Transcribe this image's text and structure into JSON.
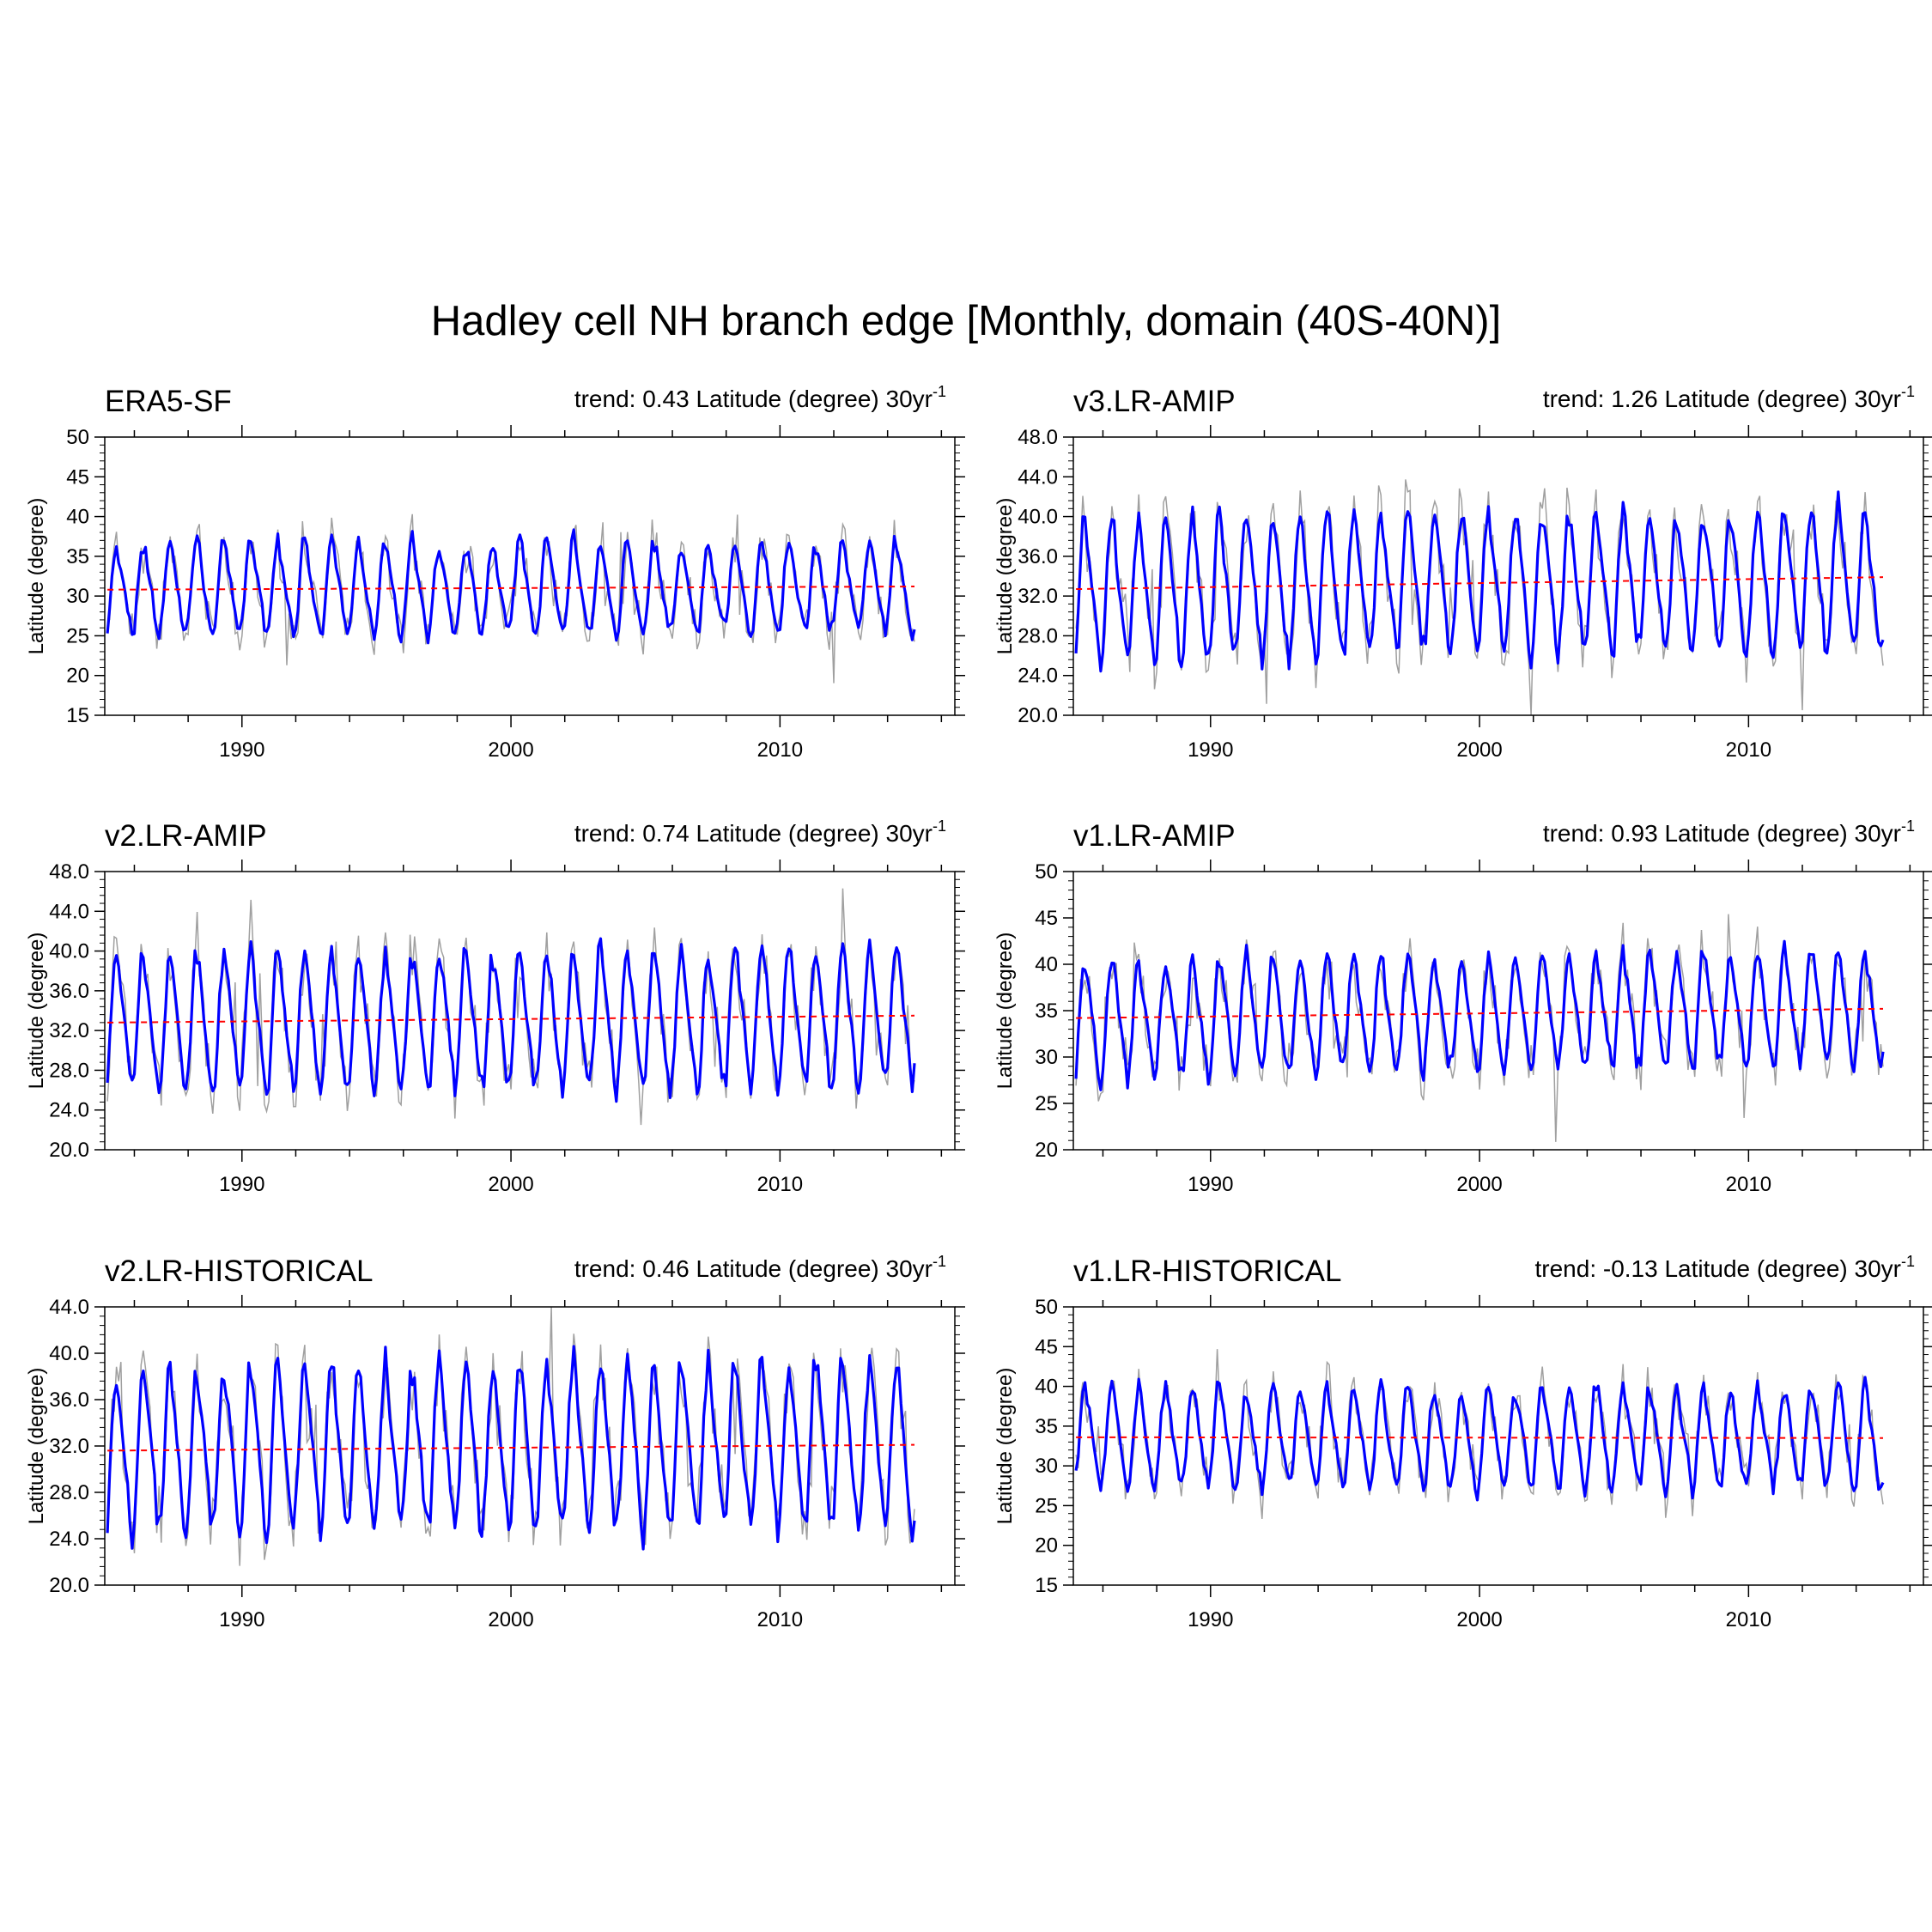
{
  "figure": {
    "title": "Hadley cell NH branch edge [Monthly, domain (40S-40N)]"
  },
  "colors": {
    "smoothed": "#0000ff",
    "raw": "#a0a0a0",
    "trend": "#ff0000",
    "axis": "#000000"
  },
  "chart_data": [
    {
      "type": "line",
      "title": "ERA5-SF",
      "trend_text": "trend: 0.43 Latitude (degree) 30yr",
      "trend_exp": "-1",
      "ylabel": "Latitude (degree)",
      "xlabel": "",
      "xlim": [
        1984.9,
        2016.5
      ],
      "ylim": [
        15,
        50
      ],
      "xticks": [
        1990,
        2000,
        2010
      ],
      "yticks": [
        15,
        20,
        25,
        30,
        35,
        40,
        45,
        50
      ],
      "ytick_labels": [
        "15",
        "20",
        "25",
        "30",
        "35",
        "40",
        "45",
        "50"
      ],
      "time_range": [
        1985,
        2014.99
      ],
      "seasonal_mean": 31.0,
      "seasonal_amplitude": 5.5,
      "trend_line": {
        "x": [
          1985,
          2015
        ],
        "y": [
          30.8,
          31.2
        ]
      },
      "series": [
        {
          "name": "monthly (raw)",
          "style": "thin grey"
        },
        {
          "name": "smoothed",
          "style": "thick blue"
        },
        {
          "name": "linear trend",
          "style": "dashed red"
        }
      ]
    },
    {
      "type": "line",
      "title": "v3.LR-AMIP",
      "trend_text": "trend: 1.26 Latitude (degree) 30yr",
      "trend_exp": "-1",
      "ylabel": "Latitude (degree)",
      "xlabel": "",
      "xlim": [
        1984.9,
        2016.5
      ],
      "ylim": [
        20,
        48
      ],
      "xticks": [
        1990,
        2000,
        2010
      ],
      "yticks": [
        20,
        24,
        28,
        32,
        36,
        40,
        44,
        48
      ],
      "ytick_labels": [
        "20.0",
        "24.0",
        "28.0",
        "32.0",
        "36.0",
        "40.0",
        "44.0",
        "48.0"
      ],
      "time_range": [
        1985,
        2014.99
      ],
      "seasonal_mean": 33.3,
      "seasonal_amplitude": 6.8,
      "trend_line": {
        "x": [
          1985,
          2015
        ],
        "y": [
          32.7,
          33.9
        ]
      },
      "series": [
        {
          "name": "monthly (raw)",
          "style": "thin grey"
        },
        {
          "name": "smoothed",
          "style": "thick blue"
        },
        {
          "name": "linear trend",
          "style": "dashed red"
        }
      ]
    },
    {
      "type": "line",
      "title": "v2.LR-AMIP",
      "trend_text": "trend: 0.74 Latitude (degree) 30yr",
      "trend_exp": "-1",
      "ylabel": "Latitude (degree)",
      "xlabel": "",
      "xlim": [
        1984.9,
        2016.5
      ],
      "ylim": [
        20,
        48
      ],
      "xticks": [
        1990,
        2000,
        2010
      ],
      "yticks": [
        20,
        24,
        28,
        32,
        36,
        40,
        44,
        48
      ],
      "ytick_labels": [
        "20.0",
        "24.0",
        "28.0",
        "32.0",
        "36.0",
        "40.0",
        "44.0",
        "48.0"
      ],
      "time_range": [
        1985,
        2014.99
      ],
      "seasonal_mean": 33.0,
      "seasonal_amplitude": 6.6,
      "trend_line": {
        "x": [
          1985,
          2015
        ],
        "y": [
          32.8,
          33.5
        ]
      },
      "series": [
        {
          "name": "monthly (raw)",
          "style": "thin grey"
        },
        {
          "name": "smoothed",
          "style": "thick blue"
        },
        {
          "name": "linear trend",
          "style": "dashed red"
        }
      ]
    },
    {
      "type": "line",
      "title": "v1.LR-AMIP",
      "trend_text": "trend: 0.93 Latitude (degree) 30yr",
      "trend_exp": "-1",
      "ylabel": "Latitude (degree)",
      "xlabel": "",
      "xlim": [
        1984.9,
        2016.5
      ],
      "ylim": [
        20,
        50
      ],
      "xticks": [
        1990,
        2000,
        2010
      ],
      "yticks": [
        20,
        25,
        30,
        35,
        40,
        45,
        50
      ],
      "ytick_labels": [
        "20",
        "25",
        "30",
        "35",
        "40",
        "45",
        "50"
      ],
      "time_range": [
        1985,
        2014.99
      ],
      "seasonal_mean": 34.6,
      "seasonal_amplitude": 6.0,
      "trend_line": {
        "x": [
          1985,
          2015
        ],
        "y": [
          34.2,
          35.2
        ]
      },
      "series": [
        {
          "name": "monthly (raw)",
          "style": "thin grey"
        },
        {
          "name": "smoothed",
          "style": "thick blue"
        },
        {
          "name": "linear trend",
          "style": "dashed red"
        }
      ]
    },
    {
      "type": "line",
      "title": "v2.LR-HISTORICAL",
      "trend_text": "trend: 0.46 Latitude (degree) 30yr",
      "trend_exp": "-1",
      "ylabel": "Latitude (degree)",
      "xlabel": "",
      "xlim": [
        1984.9,
        2016.5
      ],
      "ylim": [
        20,
        44
      ],
      "xticks": [
        1990,
        2000,
        2010
      ],
      "yticks": [
        20,
        24,
        28,
        32,
        36,
        40,
        44
      ],
      "ytick_labels": [
        "20.0",
        "24.0",
        "28.0",
        "32.0",
        "36.0",
        "40.0",
        "44.0"
      ],
      "time_range": [
        1985,
        2014.99
      ],
      "seasonal_mean": 31.8,
      "seasonal_amplitude": 6.8,
      "trend_line": {
        "x": [
          1985,
          2015
        ],
        "y": [
          31.6,
          32.1
        ]
      },
      "series": [
        {
          "name": "monthly (raw)",
          "style": "thin grey"
        },
        {
          "name": "smoothed",
          "style": "thick blue"
        },
        {
          "name": "linear trend",
          "style": "dashed red"
        }
      ]
    },
    {
      "type": "line",
      "title": "v1.LR-HISTORICAL",
      "trend_text": "trend: -0.13 Latitude (degree) 30yr",
      "trend_exp": "-1",
      "ylabel": "Latitude (degree)",
      "xlabel": "",
      "xlim": [
        1984.9,
        2016.5
      ],
      "ylim": [
        15,
        50
      ],
      "xticks": [
        1990,
        2000,
        2010
      ],
      "yticks": [
        15,
        20,
        25,
        30,
        35,
        40,
        45,
        50
      ],
      "ytick_labels": [
        "15",
        "20",
        "25",
        "30",
        "35",
        "40",
        "45",
        "50"
      ],
      "time_range": [
        1985,
        2014.99
      ],
      "seasonal_mean": 33.5,
      "seasonal_amplitude": 6.0,
      "trend_line": {
        "x": [
          1985,
          2015
        ],
        "y": [
          33.6,
          33.5
        ]
      },
      "series": [
        {
          "name": "monthly (raw)",
          "style": "thin grey"
        },
        {
          "name": "smoothed",
          "style": "thick blue"
        },
        {
          "name": "linear trend",
          "style": "dashed red"
        }
      ]
    }
  ]
}
